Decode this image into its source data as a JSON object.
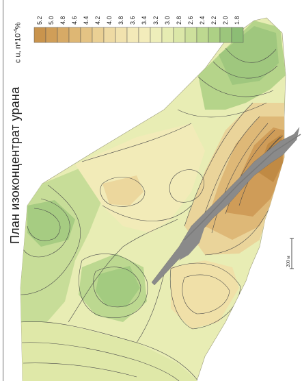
{
  "map": {
    "title": "План изоконцентрат урана",
    "legend": {
      "unit_label": "c u, n*10",
      "unit_exponent": "-4",
      "unit_suffix": "%",
      "classes": [
        {
          "value": "5.2",
          "color": "#c9944d"
        },
        {
          "value": "5.0",
          "color": "#d09e58"
        },
        {
          "value": "4.8",
          "color": "#d7aa66"
        },
        {
          "value": "4.6",
          "color": "#deb774"
        },
        {
          "value": "4.4",
          "color": "#e4c384"
        },
        {
          "value": "4.2",
          "color": "#ead094"
        },
        {
          "value": "4.0",
          "color": "#eedaa3"
        },
        {
          "value": "3.8",
          "color": "#f1e2ae"
        },
        {
          "value": "3.6",
          "color": "#f3e9b8"
        },
        {
          "value": "3.4",
          "color": "#f3ecbb"
        },
        {
          "value": "3.2",
          "color": "#eeeeba"
        },
        {
          "value": "3.0",
          "color": "#e6ecb2"
        },
        {
          "value": "2.8",
          "color": "#dbe7a8"
        },
        {
          "value": "2.6",
          "color": "#cde09c"
        },
        {
          "value": "2.4",
          "color": "#bdd890"
        },
        {
          "value": "2.2",
          "color": "#add085"
        },
        {
          "value": "2.0",
          "color": "#9cc67c"
        },
        {
          "value": "1.8",
          "color": "#8cbd75"
        }
      ]
    },
    "scale_bar": {
      "label": "200 м"
    },
    "fault_color": "#8a8a8a",
    "contour_color": "#4a4a4a"
  }
}
